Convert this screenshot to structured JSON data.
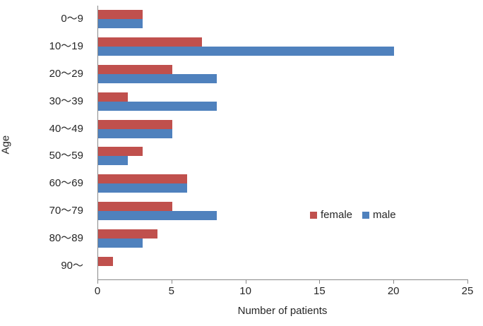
{
  "chart_data": {
    "type": "bar",
    "orientation": "horizontal",
    "title": "",
    "xlabel": "Number of patients",
    "ylabel": "Age",
    "xlim": [
      0,
      25
    ],
    "xticks": [
      0,
      5,
      10,
      15,
      20,
      25
    ],
    "grid": false,
    "legend_position": "inside-right",
    "categories": [
      "0～9",
      "10～19",
      "20～29",
      "30～39",
      "40～49",
      "50～59",
      "60～69",
      "70～79",
      "80～89",
      "90～"
    ],
    "series": [
      {
        "name": "female",
        "color": "#c0504d",
        "values": [
          3,
          7,
          5,
          2,
          5,
          3,
          6,
          5,
          4,
          1
        ]
      },
      {
        "name": "male",
        "color": "#4f81bd",
        "values": [
          3,
          20,
          8,
          8,
          5,
          2,
          6,
          8,
          3,
          0
        ]
      }
    ]
  },
  "colors": {
    "female": "#c0504d",
    "male": "#4f81bd",
    "axis_line": "#898989",
    "text": "#262626"
  }
}
